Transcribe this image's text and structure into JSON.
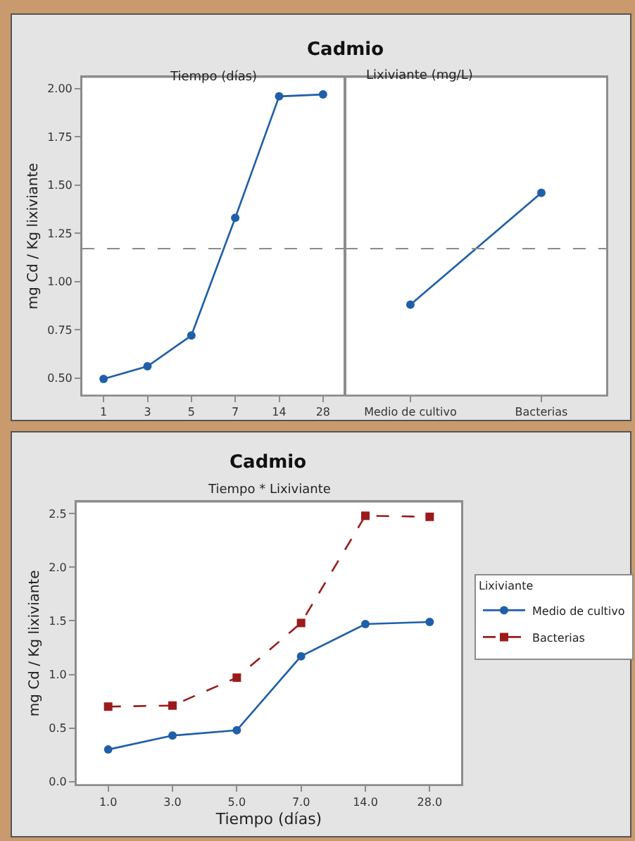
{
  "chart_data": [
    {
      "type": "line",
      "title": "Cadmio",
      "subtitle": "Tiempo (días)",
      "ylabel": "mg Cd / Kg lixiviante",
      "categories": [
        "1",
        "3",
        "5",
        "7",
        "14",
        "28"
      ],
      "series": [
        {
          "color": "#1f5fa8",
          "values": [
            0.495,
            0.56,
            0.72,
            1.33,
            1.96,
            1.97
          ]
        }
      ],
      "ylim": [
        0.41,
        2.06
      ],
      "yticks": [
        {
          "value": 0.5,
          "label": "0.50"
        },
        {
          "value": 0.75,
          "label": "0.75"
        },
        {
          "value": 1.0,
          "label": "1.00"
        },
        {
          "value": 1.25,
          "label": "1.25"
        },
        {
          "value": 1.5,
          "label": "1.50"
        },
        {
          "value": 1.75,
          "label": "1.75"
        },
        {
          "value": 2.0,
          "label": "2.00"
        }
      ],
      "ref_lines": [
        {
          "axis": "y",
          "value": 1.17,
          "color": "#8c8c8c",
          "line_style": "dashed"
        }
      ],
      "marker": "circle",
      "grid": false,
      "legend": false
    },
    {
      "type": "line",
      "subtitle": "Lixiviante (mg/L)",
      "categories": [
        "Medio de cultivo",
        "Bacterias"
      ],
      "series": [
        {
          "color": "#1f5fa8",
          "values": [
            0.88,
            1.46
          ]
        }
      ],
      "ylim": [
        0.41,
        2.06
      ],
      "ref_lines": [
        {
          "axis": "y",
          "value": 1.17,
          "color": "#8c8c8c",
          "line_style": "dashed"
        }
      ],
      "tick_labels": "x",
      "marker": "circle",
      "grid": false,
      "legend": false
    },
    {
      "type": "line",
      "title": "Cadmio",
      "subtitle": "Tiempo * Lixiviante",
      "xlabel": "Tiempo (días)",
      "ylabel": "mg Cd / Kg lixiviante",
      "legend_title": "Lixiviante",
      "categories": [
        "1.0",
        "3.0",
        "5.0",
        "7.0",
        "14.0",
        "28.0"
      ],
      "series": [
        {
          "name": "Medio de cultivo",
          "color": "#1f5fa8",
          "marker": "circle",
          "line_style": "solid",
          "values": [
            0.3,
            0.43,
            0.48,
            1.17,
            1.47,
            1.49
          ]
        },
        {
          "name": "Bacterias",
          "color": "#9b1b1b",
          "marker": "square",
          "line_style": "dashed",
          "values": [
            0.7,
            0.71,
            0.97,
            1.48,
            2.48,
            2.47
          ]
        }
      ],
      "ylim": [
        -0.03,
        2.61
      ],
      "yticks": [
        {
          "value": 0.0,
          "label": "0.0"
        },
        {
          "value": 0.5,
          "label": "0.5"
        },
        {
          "value": 1.0,
          "label": "1.0"
        },
        {
          "value": 1.5,
          "label": "1.5"
        },
        {
          "value": 2.0,
          "label": "2.0"
        },
        {
          "value": 2.5,
          "label": "2.5"
        }
      ],
      "grid": false,
      "legend": "right"
    }
  ]
}
